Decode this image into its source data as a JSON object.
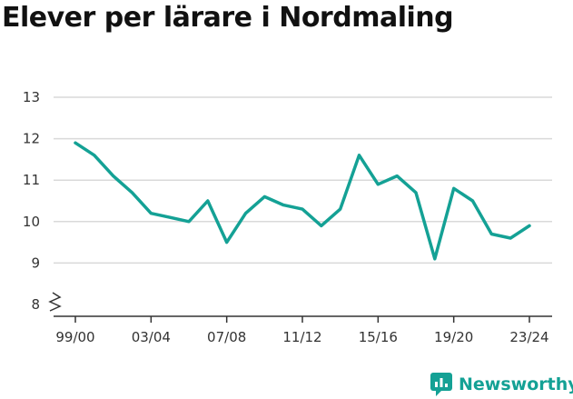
{
  "title": "Elever per lärare i Nordmaling",
  "brand": {
    "name": "Newsworthy",
    "icon": "newsworthy-logo-icon",
    "color": "#14a195"
  },
  "chart_data": {
    "type": "line",
    "title": "Elever per lärare i Nordmaling",
    "xlabel": "",
    "ylabel": "",
    "x": [
      "99/00",
      "00/01",
      "01/02",
      "02/03",
      "03/04",
      "04/05",
      "05/06",
      "06/07",
      "07/08",
      "08/09",
      "09/10",
      "10/11",
      "11/12",
      "12/13",
      "13/14",
      "14/15",
      "15/16",
      "16/17",
      "17/18",
      "18/19",
      "19/20",
      "20/21",
      "21/22",
      "22/23",
      "23/24"
    ],
    "x_tick_labels": [
      "99/00",
      "03/04",
      "07/08",
      "11/12",
      "15/16",
      "19/20",
      "23/24"
    ],
    "y_ticks": [
      8,
      9,
      10,
      11,
      12,
      13
    ],
    "ylim": [
      8,
      13
    ],
    "y_axis_break": true,
    "grid": true,
    "series": [
      {
        "values": [
          11.9,
          11.6,
          11.1,
          10.7,
          10.2,
          10.1,
          10.0,
          10.5,
          9.5,
          10.2,
          10.6,
          10.4,
          10.3,
          9.9,
          10.3,
          11.6,
          10.9,
          11.1,
          10.7,
          9.1,
          10.8,
          10.5,
          9.7,
          9.6,
          9.9
        ],
        "color": "#14a195"
      }
    ]
  }
}
